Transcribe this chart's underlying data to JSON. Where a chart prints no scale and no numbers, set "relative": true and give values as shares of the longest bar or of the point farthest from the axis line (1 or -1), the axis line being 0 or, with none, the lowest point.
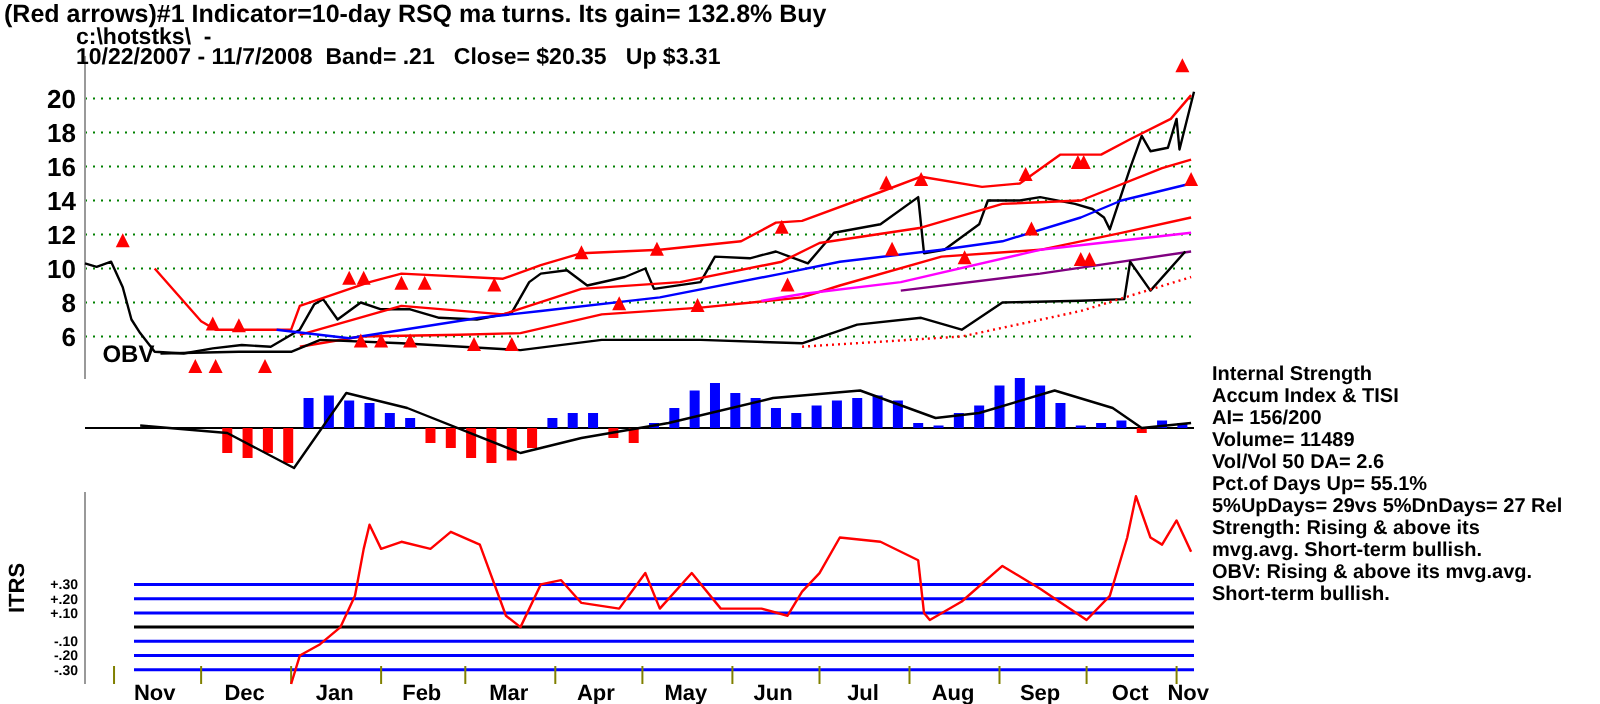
{
  "chart_data": [
    {
      "type": "line",
      "title": "(Red arrows)#1 Indicator=10-day RSQ ma turns. Its gain= 132.8% Buy",
      "subtitle": "c:\\hotstks\\  -\n10/22/2007 - 11/7/2008  Band= .21   Close= $20.35   Up $3.31",
      "xlim": [
        "2007-10-22",
        "2008-11-07"
      ],
      "ylim": [
        3.5,
        22.5
      ],
      "yticks": [
        6,
        8,
        10,
        12,
        14,
        16,
        18,
        20
      ],
      "grid": "y",
      "tick_labels": "y",
      "series": [
        {
          "color": "#000000",
          "x": [
            "2007-10-22",
            "2007-10-26",
            "2007-10-31",
            "2007-11-04",
            "2007-11-07",
            "2007-11-10",
            "2007-11-15",
            "2007-11-25",
            "2007-12-05",
            "2007-12-15",
            "2007-12-25",
            "2008-01-04",
            "2008-01-09",
            "2008-01-12",
            "2008-01-17",
            "2008-01-25",
            "2008-02-01",
            "2008-02-11",
            "2008-02-21",
            "2008-03-05",
            "2008-03-17",
            "2008-03-23",
            "2008-03-27",
            "2008-04-05",
            "2008-04-12",
            "2008-04-25",
            "2008-05-02",
            "2008-05-05",
            "2008-05-21",
            "2008-05-26",
            "2008-06-07",
            "2008-06-16",
            "2008-06-27",
            "2008-07-06",
            "2008-07-22",
            "2008-08-04",
            "2008-08-06",
            "2008-08-13",
            "2008-08-25",
            "2008-08-28",
            "2008-09-08",
            "2008-09-15",
            "2008-09-27",
            "2008-10-03",
            "2008-10-07",
            "2008-10-09",
            "2008-10-16",
            "2008-10-20",
            "2008-10-23",
            "2008-10-29",
            "2008-11-01",
            "2008-11-02",
            "2008-11-07"
          ],
          "values": [
            10.3,
            10.1,
            10.4,
            8.9,
            7.0,
            6.2,
            5.1,
            5.0,
            5.3,
            5.5,
            5.4,
            6.4,
            7.9,
            8.2,
            7.0,
            8.0,
            7.6,
            7.6,
            7.1,
            7.0,
            7.4,
            9.2,
            9.7,
            9.9,
            9.0,
            9.5,
            10.0,
            8.8,
            9.2,
            10.7,
            10.6,
            11.0,
            10.3,
            12.1,
            12.6,
            14.2,
            10.9,
            11.1,
            12.6,
            14.0,
            14.0,
            14.2,
            13.8,
            13.5,
            13.0,
            12.3,
            15.9,
            17.8,
            16.9,
            17.1,
            18.8,
            17.0,
            20.4
          ]
        },
        {
          "color": "#ff0000",
          "x": [
            "2007-11-15",
            "2007-12-01",
            "2007-12-06",
            "2008-01-01",
            "2008-01-04",
            "2008-01-28",
            "2008-02-08",
            "2008-03-14",
            "2008-03-27",
            "2008-04-10",
            "2008-05-07",
            "2008-06-04",
            "2008-06-16",
            "2008-06-25",
            "2008-07-22",
            "2008-08-05",
            "2008-08-26",
            "2008-09-08",
            "2008-09-22",
            "2008-10-06",
            "2008-10-16",
            "2008-10-30",
            "2008-11-06"
          ],
          "values": [
            10.0,
            6.9,
            6.4,
            6.4,
            7.8,
            9.2,
            9.7,
            9.4,
            10.2,
            10.9,
            11.1,
            11.6,
            12.7,
            12.8,
            14.5,
            15.4,
            14.8,
            15.0,
            16.7,
            16.7,
            17.6,
            18.8,
            20.2
          ]
        },
        {
          "color": "#ff0000",
          "x": [
            "2008-01-04",
            "2008-02-08",
            "2008-03-14",
            "2008-04-10",
            "2008-05-14",
            "2008-06-18",
            "2008-07-01",
            "2008-08-05",
            "2008-09-02",
            "2008-09-29",
            "2008-10-27",
            "2008-11-06"
          ],
          "values": [
            6.1,
            7.8,
            7.3,
            8.8,
            9.2,
            10.4,
            11.5,
            12.4,
            13.8,
            14.0,
            15.9,
            16.4
          ]
        },
        {
          "color": "#ff0000",
          "x": [
            "2008-01-04",
            "2008-01-25",
            "2008-02-28",
            "2008-03-20",
            "2008-04-17",
            "2008-05-21",
            "2008-06-25",
            "2008-07-08",
            "2008-08-12",
            "2008-09-15",
            "2008-10-13",
            "2008-11-06"
          ],
          "values": [
            5.4,
            6.0,
            6.1,
            6.2,
            7.3,
            7.7,
            8.3,
            9.0,
            10.7,
            11.1,
            12.1,
            13.0
          ]
        },
        {
          "color": "#0000ff",
          "x": [
            "2007-12-27",
            "2008-01-21",
            "2008-03-06",
            "2008-03-27",
            "2008-05-07",
            "2008-06-18",
            "2008-07-08",
            "2008-08-12",
            "2008-09-02",
            "2008-09-29",
            "2008-10-13",
            "2008-11-06"
          ],
          "values": [
            6.4,
            5.9,
            7.1,
            7.5,
            8.3,
            9.7,
            10.4,
            11.1,
            11.6,
            13.0,
            14.0,
            15.0
          ]
        },
        {
          "color": "#ff00ff",
          "x": [
            "2008-06-11",
            "2008-06-25",
            "2008-07-29",
            "2008-09-15",
            "2008-11-06"
          ],
          "values": [
            8.1,
            8.5,
            9.2,
            11.1,
            12.1
          ]
        },
        {
          "color": "#800080",
          "x": [
            "2008-07-29",
            "2008-09-15",
            "2008-11-06"
          ],
          "values": [
            8.7,
            9.7,
            11.0
          ]
        },
        {
          "name": "OBV",
          "color": "#000000",
          "x": [
            "2007-11-17",
            "2007-12-14",
            "2008-01-01",
            "2008-01-11",
            "2008-02-08",
            "2008-03-20",
            "2008-04-17",
            "2008-05-21",
            "2008-06-25",
            "2008-07-14",
            "2008-08-05",
            "2008-08-19",
            "2008-09-02",
            "2008-09-29",
            "2008-10-14",
            "2008-10-16",
            "2008-10-23",
            "2008-11-04"
          ],
          "values": [
            5.0,
            5.1,
            5.1,
            5.8,
            5.6,
            5.2,
            5.8,
            5.8,
            5.6,
            6.7,
            7.1,
            6.4,
            8.0,
            8.1,
            8.2,
            10.4,
            8.7,
            11.0
          ]
        },
        {
          "color": "#ff0000",
          "line_style": "dotted",
          "x": [
            "2008-06-25",
            "2008-08-19",
            "2008-09-29",
            "2008-11-06"
          ],
          "values": [
            5.4,
            6.0,
            7.5,
            9.5
          ]
        },
        {
          "type": "scatter",
          "marker": "triangle",
          "color": "#ff0000",
          "x": [
            "2007-11-04",
            "2007-12-05",
            "2007-12-14",
            "2008-01-21",
            "2008-01-26",
            "2008-02-08",
            "2008-02-16",
            "2008-03-11",
            "2008-04-10",
            "2008-05-06",
            "2008-06-18",
            "2008-07-24",
            "2008-08-05",
            "2008-09-10",
            "2008-09-28",
            "2008-09-30",
            "2008-11-03"
          ],
          "values": [
            11.6,
            6.7,
            6.6,
            9.4,
            9.4,
            9.1,
            9.1,
            9.0,
            10.9,
            11.1,
            12.4,
            15.0,
            15.2,
            15.5,
            16.2,
            16.2,
            21.9
          ]
        },
        {
          "type": "scatter",
          "marker": "triangle",
          "color": "#ff0000",
          "x": [
            "2007-11-29",
            "2007-12-06",
            "2007-12-23",
            "2008-01-25",
            "2008-02-01",
            "2008-02-11",
            "2008-03-04",
            "2008-03-17",
            "2008-04-23",
            "2008-05-20",
            "2008-06-20",
            "2008-07-26",
            "2008-08-20",
            "2008-09-12",
            "2008-09-29",
            "2008-10-02",
            "2008-11-06"
          ],
          "values": [
            4.2,
            4.2,
            4.2,
            5.7,
            5.7,
            5.7,
            5.5,
            5.5,
            7.9,
            7.8,
            9.0,
            11.1,
            10.6,
            12.3,
            10.5,
            10.5,
            15.2
          ]
        }
      ]
    },
    {
      "type": "bar",
      "relative": true,
      "tick_labels": false,
      "xlim": [
        "2007-10-22",
        "2008-11-07"
      ],
      "annotations": [
        "Internal Strength",
        "Accum Index & TISI",
        "AI= 156/200",
        "Volume= 11489",
        "Vol/Vol 50 DA= 2.6",
        "Pct.of Days Up= 55.1%",
        "5%UpDays= 29vs 5%DnDays= 27   Rel Strength: Rising & above its mvg.avg. Short-term bullish.",
        "OBV: Rising & above its mvg.avg. Short-term bullish."
      ],
      "series": [
        {
          "x": [
            "2007-12-10",
            "2007-12-17",
            "2007-12-24",
            "2007-12-31",
            "2008-01-07",
            "2008-01-14",
            "2008-01-21",
            "2008-01-28",
            "2008-02-04",
            "2008-02-11",
            "2008-02-18",
            "2008-02-25",
            "2008-03-03",
            "2008-03-10",
            "2008-03-17",
            "2008-03-24",
            "2008-03-31",
            "2008-04-07",
            "2008-04-14",
            "2008-04-21",
            "2008-04-28",
            "2008-05-05",
            "2008-05-12",
            "2008-05-19",
            "2008-05-26",
            "2008-06-02",
            "2008-06-09",
            "2008-06-16",
            "2008-06-23",
            "2008-06-30",
            "2008-07-07",
            "2008-07-14",
            "2008-07-21",
            "2008-07-28",
            "2008-08-04",
            "2008-08-11",
            "2008-08-18",
            "2008-08-25",
            "2008-09-01",
            "2008-09-08",
            "2008-09-15",
            "2008-09-22",
            "2008-09-29",
            "2008-10-06",
            "2008-10-13",
            "2008-10-20",
            "2008-10-27",
            "2008-11-03"
          ],
          "values": [
            -0.5,
            -0.6,
            -0.5,
            -0.7,
            0.6,
            0.65,
            0.55,
            0.5,
            0.3,
            0.2,
            -0.3,
            -0.4,
            -0.6,
            -0.7,
            -0.65,
            -0.4,
            0.2,
            0.3,
            0.3,
            -0.2,
            -0.3,
            0.1,
            0.4,
            0.75,
            0.9,
            0.7,
            0.6,
            0.4,
            0.3,
            0.45,
            0.55,
            0.6,
            0.65,
            0.55,
            0.1,
            0.05,
            0.3,
            0.45,
            0.85,
            1.0,
            0.85,
            0.5,
            0.05,
            0.1,
            0.15,
            -0.1,
            0.15,
            0.1
          ],
          "colors": [
            "#ff0000",
            "#ff0000",
            "#ff0000",
            "#ff0000",
            "#0000ff",
            "#0000ff",
            "#0000ff",
            "#0000ff",
            "#0000ff",
            "#0000ff",
            "#ff0000",
            "#ff0000",
            "#ff0000",
            "#ff0000",
            "#ff0000",
            "#ff0000",
            "#0000ff",
            "#0000ff",
            "#0000ff",
            "#ff0000",
            "#ff0000",
            "#0000ff",
            "#0000ff",
            "#0000ff",
            "#0000ff",
            "#0000ff",
            "#0000ff",
            "#0000ff",
            "#0000ff",
            "#0000ff",
            "#0000ff",
            "#0000ff",
            "#0000ff",
            "#0000ff",
            "#0000ff",
            "#0000ff",
            "#0000ff",
            "#0000ff",
            "#0000ff",
            "#0000ff",
            "#0000ff",
            "#0000ff",
            "#0000ff",
            "#0000ff",
            "#0000ff",
            "#ff0000",
            "#0000ff",
            "#0000ff"
          ]
        },
        {
          "type": "line",
          "color": "#000000",
          "x": [
            "2007-11-10",
            "2007-12-10",
            "2008-01-02",
            "2008-01-20",
            "2008-02-10",
            "2008-03-20",
            "2008-04-10",
            "2008-05-10",
            "2008-06-15",
            "2008-07-15",
            "2008-08-10",
            "2008-08-25",
            "2008-09-20",
            "2008-10-10",
            "2008-10-20",
            "2008-11-06"
          ],
          "values": [
            0.05,
            -0.1,
            -0.8,
            0.7,
            0.4,
            -0.5,
            -0.2,
            0.1,
            0.6,
            0.75,
            0.2,
            0.3,
            0.75,
            0.4,
            0.0,
            0.1
          ]
        }
      ]
    },
    {
      "type": "line",
      "ylabel": "ITRS",
      "xlim": [
        "2007-10-22",
        "2008-11-07"
      ],
      "ylim": [
        -0.4,
        0.95
      ],
      "grid": "y",
      "yticks": [
        {
          "value": 0.3,
          "label": "+.30"
        },
        {
          "value": 0.2,
          "label": "+.20"
        },
        {
          "value": 0.1,
          "label": "+.10"
        },
        {
          "value": 0,
          "label": null
        },
        {
          "value": -0.1,
          "label": "-.10"
        },
        {
          "value": -0.2,
          "label": "-.20"
        },
        {
          "value": -0.3,
          "label": "-.30"
        }
      ],
      "xticks": [
        {
          "value": "2007-11-01",
          "label": null
        },
        {
          "value": "2007-11-15",
          "label": "Nov"
        },
        {
          "value": "2007-12-01",
          "label": null
        },
        {
          "value": "2007-12-16",
          "label": "Dec"
        },
        {
          "value": "2008-01-01",
          "label": null
        },
        {
          "value": "2008-01-16",
          "label": "Jan"
        },
        {
          "value": "2008-02-01",
          "label": null
        },
        {
          "value": "2008-02-15",
          "label": "Feb"
        },
        {
          "value": "2008-03-01",
          "label": null
        },
        {
          "value": "2008-03-16",
          "label": "Mar"
        },
        {
          "value": "2008-04-01",
          "label": null
        },
        {
          "value": "2008-04-15",
          "label": "Apr"
        },
        {
          "value": "2008-05-01",
          "label": null
        },
        {
          "value": "2008-05-16",
          "label": "May"
        },
        {
          "value": "2008-06-01",
          "label": null
        },
        {
          "value": "2008-06-15",
          "label": "Jun"
        },
        {
          "value": "2008-07-01",
          "label": null
        },
        {
          "value": "2008-07-16",
          "label": "Jul"
        },
        {
          "value": "2008-08-01",
          "label": null
        },
        {
          "value": "2008-08-16",
          "label": "Aug"
        },
        {
          "value": "2008-09-01",
          "label": null
        },
        {
          "value": "2008-09-15",
          "label": "Sep"
        },
        {
          "value": "2008-10-01",
          "label": null
        },
        {
          "value": "2008-10-16",
          "label": "Oct"
        },
        {
          "value": "2008-11-01",
          "label": null
        },
        {
          "value": "2008-11-05",
          "label": "Nov"
        }
      ],
      "series": [
        {
          "color": "#ff0000",
          "x": [
            "2008-01-01",
            "2008-01-04",
            "2008-01-11",
            "2008-01-18",
            "2008-01-23",
            "2008-01-26",
            "2008-01-28",
            "2008-02-01",
            "2008-02-08",
            "2008-02-18",
            "2008-02-25",
            "2008-03-06",
            "2008-03-15",
            "2008-03-20",
            "2008-03-27",
            "2008-04-03",
            "2008-04-10",
            "2008-04-23",
            "2008-05-02",
            "2008-05-07",
            "2008-05-18",
            "2008-05-28",
            "2008-06-11",
            "2008-06-20",
            "2008-06-25",
            "2008-07-01",
            "2008-07-08",
            "2008-07-22",
            "2008-08-04",
            "2008-08-06",
            "2008-08-08",
            "2008-08-19",
            "2008-09-02",
            "2008-09-15",
            "2008-10-01",
            "2008-10-09",
            "2008-10-15",
            "2008-10-18",
            "2008-10-23",
            "2008-10-27",
            "2008-11-01",
            "2008-11-06"
          ],
          "values": [
            -0.4,
            -0.2,
            -0.12,
            0.0,
            0.22,
            0.55,
            0.72,
            0.55,
            0.6,
            0.55,
            0.67,
            0.58,
            0.08,
            0.0,
            0.3,
            0.33,
            0.17,
            0.13,
            0.38,
            0.13,
            0.38,
            0.13,
            0.13,
            0.08,
            0.25,
            0.38,
            0.63,
            0.6,
            0.47,
            0.1,
            0.05,
            0.18,
            0.43,
            0.27,
            0.05,
            0.22,
            0.63,
            0.92,
            0.63,
            0.58,
            0.75,
            0.53
          ]
        }
      ]
    }
  ]
}
